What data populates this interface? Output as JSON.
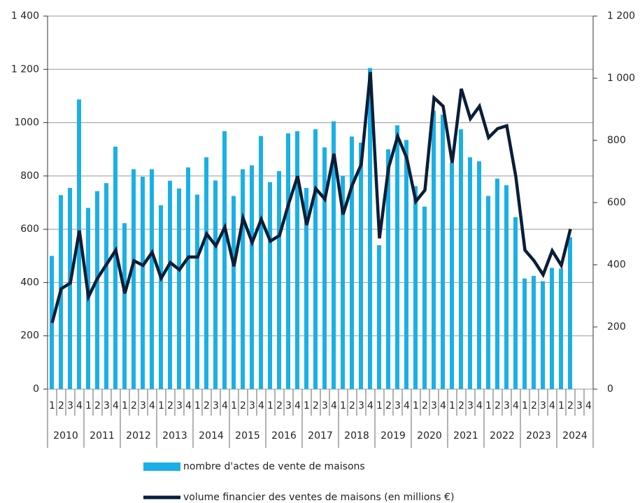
{
  "chart_data": {
    "type": "combo",
    "categories": [
      "1",
      "2",
      "3",
      "4",
      "1",
      "2",
      "3",
      "4",
      "1",
      "2",
      "3",
      "4",
      "1",
      "2",
      "3",
      "4",
      "1",
      "2",
      "3",
      "4",
      "1",
      "2",
      "3",
      "4",
      "1",
      "2",
      "3",
      "4",
      "1",
      "2",
      "3",
      "4",
      "1",
      "2",
      "3",
      "4",
      "1",
      "2",
      "3",
      "4",
      "1",
      "2",
      "3",
      "4",
      "1",
      "2",
      "3",
      "4",
      "1",
      "2",
      "3",
      "4",
      "1",
      "2",
      "3",
      "4",
      "1",
      "2",
      "3",
      "4"
    ],
    "years": [
      "2010",
      "2011",
      "2012",
      "2013",
      "2014",
      "2015",
      "2016",
      "2017",
      "2018",
      "2019",
      "2020",
      "2021",
      "2022",
      "2023",
      "2024"
    ],
    "series": [
      {
        "name": "nombre d'actes de vente de maisons",
        "type": "bar",
        "color": "#1ab0e6",
        "values": [
          500,
          728,
          755,
          1087,
          680,
          743,
          773,
          910,
          623,
          825,
          797,
          825,
          690,
          782,
          753,
          832,
          730,
          870,
          783,
          968,
          725,
          825,
          840,
          950,
          777,
          818,
          960,
          968,
          755,
          975,
          907,
          1005,
          800,
          948,
          925,
          1205,
          540,
          900,
          990,
          935,
          762,
          685,
          1045,
          1030,
          850,
          975,
          870,
          855,
          725,
          790,
          765,
          645,
          415,
          425,
          405,
          455,
          452,
          570,
          null,
          null
        ]
      },
      {
        "name": "volume financier des ventes de maisons (en millions €)",
        "type": "line",
        "axis": "y2",
        "color": "#0a1e38",
        "values": [
          213,
          323,
          341,
          510,
          297,
          357,
          402,
          447,
          308,
          413,
          398,
          440,
          357,
          407,
          384,
          425,
          425,
          499,
          461,
          521,
          395,
          550,
          472,
          546,
          476,
          494,
          595,
          685,
          528,
          645,
          611,
          757,
          562,
          656,
          723,
          1020,
          485,
          712,
          813,
          744,
          604,
          640,
          937,
          910,
          728,
          966,
          870,
          910,
          809,
          838,
          847,
          683,
          447,
          413,
          368,
          445,
          398,
          515,
          null,
          null
        ]
      }
    ],
    "ylim": [
      0,
      1400
    ],
    "yticks": [
      0,
      200,
      400,
      600,
      800,
      1000,
      {
        "value": 1200,
        "label": "1 200"
      },
      {
        "value": 1400,
        "label": "1 400"
      }
    ],
    "y2lim": [
      0,
      1200
    ],
    "y2ticks": [
      0,
      200,
      400,
      600,
      800,
      {
        "value": 1000,
        "label": "1 000"
      },
      {
        "value": 1200,
        "label": "1 200"
      }
    ],
    "grid": true
  }
}
